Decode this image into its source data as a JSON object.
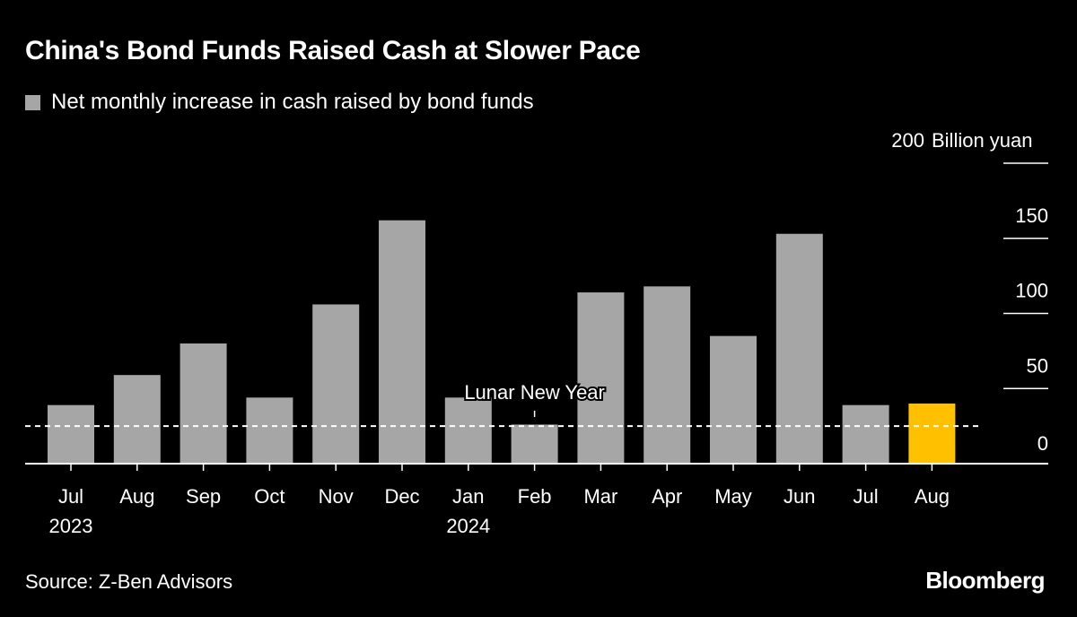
{
  "title": "China's Bond Funds Raised Cash at Slower Pace",
  "legend": {
    "label": "Net monthly increase in cash raised by bond funds"
  },
  "source": "Source: Z-Ben Advisors",
  "brand": "Bloomberg",
  "colors": {
    "bar": "#a6a6a6",
    "highlight": "#ffc000",
    "text": "#ffffff",
    "background": "#000000"
  },
  "chart_data": {
    "type": "bar",
    "categories": [
      "Jul",
      "Aug",
      "Sep",
      "Oct",
      "Nov",
      "Dec",
      "Jan",
      "Feb",
      "Mar",
      "Apr",
      "May",
      "Jun",
      "Jul",
      "Aug"
    ],
    "year_labels": [
      "2023",
      "",
      "",
      "",
      "",
      "",
      "2024",
      "",
      "",
      "",
      "",
      "",
      "",
      ""
    ],
    "values": [
      39,
      59,
      80,
      44,
      106,
      162,
      44,
      26,
      114,
      118,
      85,
      153,
      39,
      40
    ],
    "highlight_index": 13,
    "ylim": [
      0,
      200
    ],
    "yticks": [
      0,
      50,
      100,
      150,
      200
    ],
    "ytick_labels": [
      "0",
      "50",
      "100",
      "150",
      "200"
    ],
    "y_unit": "Billion yuan",
    "reference_line": {
      "value": 25,
      "style": "dashed"
    },
    "annotation": {
      "text": "Lunar New Year",
      "category_index": 7
    },
    "grid": true
  }
}
